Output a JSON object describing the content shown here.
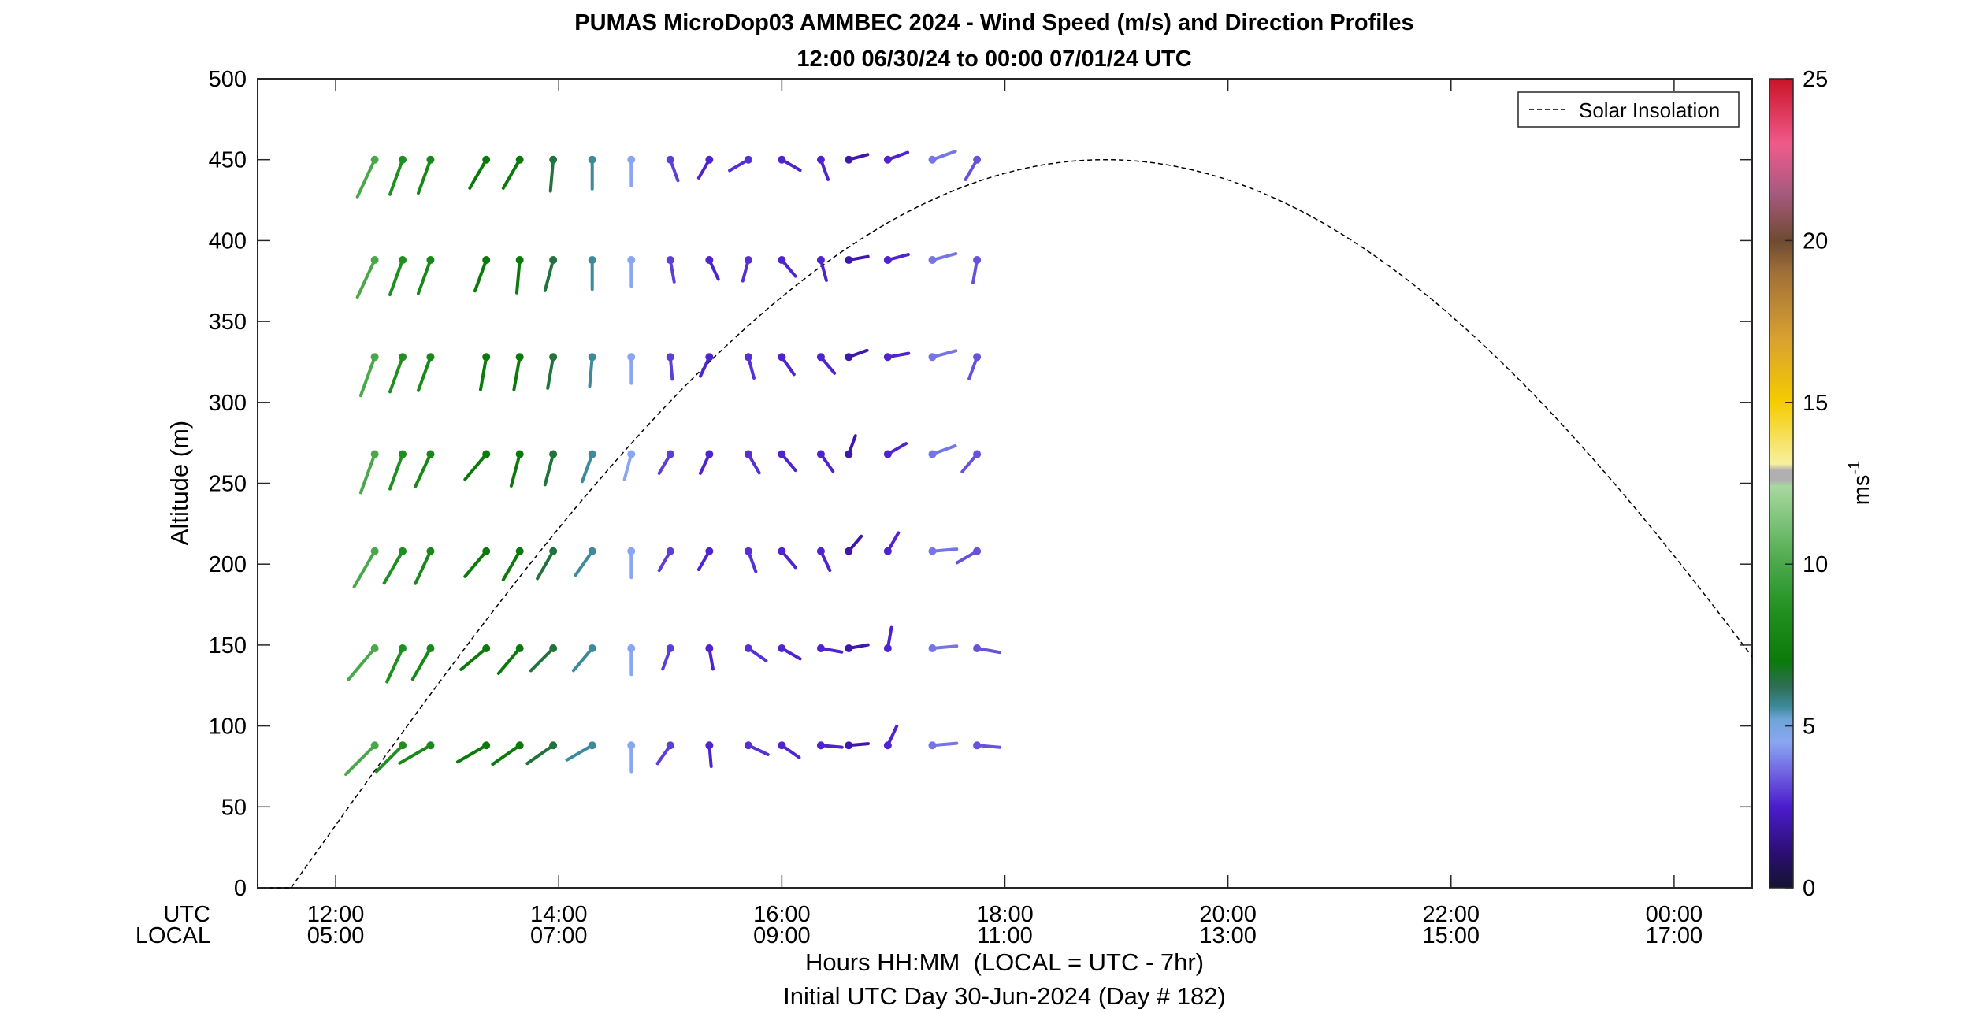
{
  "chart_data": {
    "type": "scatter",
    "subtype": "wind-barb-profile",
    "title_line1": "PUMAS MicroDop03 AMMBEC 2024 - Wind Speed (m/s) and Direction Profiles",
    "title_line2": "12:00 06/30/24 to 00:00 07/01/24  UTC",
    "ylabel": "Altitude (m)",
    "xlabel": "Hours HH:MM  (LOCAL = UTC - 7hr)",
    "xlabel2": "Initial UTC Day 30-Jun-2024 (Day # 182)",
    "row_label_utc": "UTC",
    "row_label_local": "LOCAL",
    "xlim_hours_utc": [
      11.3,
      24.7
    ],
    "ylim": [
      0,
      500
    ],
    "y_ticks": [
      0,
      50,
      100,
      150,
      200,
      250,
      300,
      350,
      400,
      450,
      500
    ],
    "x_ticks": [
      {
        "hour": 12,
        "utc": "12:00",
        "local": "05:00"
      },
      {
        "hour": 14,
        "utc": "14:00",
        "local": "07:00"
      },
      {
        "hour": 16,
        "utc": "16:00",
        "local": "09:00"
      },
      {
        "hour": 18,
        "utc": "18:00",
        "local": "11:00"
      },
      {
        "hour": 20,
        "utc": "20:00",
        "local": "13:00"
      },
      {
        "hour": 22,
        "utc": "22:00",
        "local": "15:00"
      },
      {
        "hour": 24,
        "utc": "00:00",
        "local": "17:00"
      }
    ],
    "grid": false,
    "legend": {
      "position": "top-right",
      "entries": [
        {
          "name": "Solar Insolation",
          "style": "dashed",
          "color": "#000000"
        }
      ]
    },
    "colorbar": {
      "label": "ms",
      "label_superscript": "-1",
      "range": [
        0,
        25
      ],
      "ticks": [
        0,
        5,
        10,
        15,
        20,
        25
      ],
      "stops": [
        {
          "v": 0,
          "c": "#141430"
        },
        {
          "v": 1,
          "c": "#2a0e6e"
        },
        {
          "v": 2.5,
          "c": "#4b1ccc"
        },
        {
          "v": 3.5,
          "c": "#6e60e0"
        },
        {
          "v": 4.5,
          "c": "#8aa6f2"
        },
        {
          "v": 5.2,
          "c": "#6fa4d8"
        },
        {
          "v": 5.6,
          "c": "#3d8a9a"
        },
        {
          "v": 6.2,
          "c": "#2f6e58"
        },
        {
          "v": 7,
          "c": "#0b7a0b"
        },
        {
          "v": 8.5,
          "c": "#1f8f1f"
        },
        {
          "v": 10,
          "c": "#4aa84a"
        },
        {
          "v": 12.4,
          "c": "#a8d8a0"
        },
        {
          "v": 12.6,
          "c": "#b0b0b0"
        },
        {
          "v": 12.9,
          "c": "#b0b0b0"
        },
        {
          "v": 13.1,
          "c": "#f8f0a0"
        },
        {
          "v": 15,
          "c": "#f5cc00"
        },
        {
          "v": 17,
          "c": "#d8a030"
        },
        {
          "v": 19,
          "c": "#a07038"
        },
        {
          "v": 20,
          "c": "#6f4a32"
        },
        {
          "v": 21.5,
          "c": "#a85a80"
        },
        {
          "v": 23,
          "c": "#f05a8a"
        },
        {
          "v": 25,
          "c": "#c81428"
        }
      ]
    },
    "solar_insolation": {
      "series_name": "Solar Insolation",
      "sunrise_hour": 11.6,
      "peak_hour": 18.9,
      "peak_value_on_altitude_axis": 450
    },
    "wind_stations": [
      {
        "t": 12.35,
        "speed": 10.0,
        "dirs": [
          315,
          320,
          330,
          340,
          340,
          335,
          335
        ]
      },
      {
        "t": 12.6,
        "speed": 8.5,
        "dirs": [
          315,
          335,
          330,
          340,
          340,
          340,
          340
        ]
      },
      {
        "t": 12.85,
        "speed": 8.0,
        "dirs": [
          300,
          330,
          335,
          335,
          340,
          340,
          340
        ]
      },
      {
        "t": 13.35,
        "speed": 7.0,
        "dirs": [
          300,
          310,
          320,
          320,
          350,
          340,
          330
        ]
      },
      {
        "t": 13.65,
        "speed": 7.0,
        "dirs": [
          305,
          320,
          330,
          345,
          350,
          355,
          330
        ]
      },
      {
        "t": 13.95,
        "speed": 6.5,
        "dirs": [
          305,
          315,
          330,
          345,
          350,
          345,
          355
        ]
      },
      {
        "t": 14.3,
        "speed": 5.6,
        "dirs": [
          300,
          320,
          325,
          340,
          355,
          360,
          360
        ]
      },
      {
        "t": 14.65,
        "speed": 4.5,
        "dirs": [
          360,
          360,
          360,
          345,
          360,
          360,
          360
        ]
      },
      {
        "t": 15.0,
        "speed": 3.0,
        "dirs": [
          325,
          340,
          330,
          330,
          5,
          10,
          20
        ]
      },
      {
        "t": 15.35,
        "speed": 2.6,
        "dirs": [
          5,
          10,
          330,
          335,
          335,
          25,
          330
        ]
      },
      {
        "t": 15.7,
        "speed": 2.8,
        "dirs": [
          65,
          55,
          20,
          30,
          15,
          345,
          300
        ]
      },
      {
        "t": 16.0,
        "speed": 2.6,
        "dirs": [
          55,
          60,
          40,
          40,
          35,
          40,
          60
        ]
      },
      {
        "t": 16.35,
        "speed": 2.6,
        "dirs": [
          85,
          80,
          25,
          35,
          40,
          15,
          20
        ]
      },
      {
        "t": 16.6,
        "speed": 2.0,
        "dirs": [
          95,
          100,
          140,
          160,
          110,
          100,
          105
        ]
      },
      {
        "t": 16.95,
        "speed": 2.6,
        "dirs": [
          155,
          170,
          150,
          120,
          100,
          105,
          110
        ]
      },
      {
        "t": 17.35,
        "speed": 3.8,
        "dirs": [
          95,
          95,
          95,
          110,
          105,
          105,
          110
        ]
      },
      {
        "t": 17.75,
        "speed": 3.3,
        "dirs": [
          85,
          80,
          300,
          320,
          340,
          350,
          330
        ]
      }
    ],
    "wind_altitudes": [
      88,
      148,
      208,
      268,
      328,
      388,
      450
    ]
  }
}
